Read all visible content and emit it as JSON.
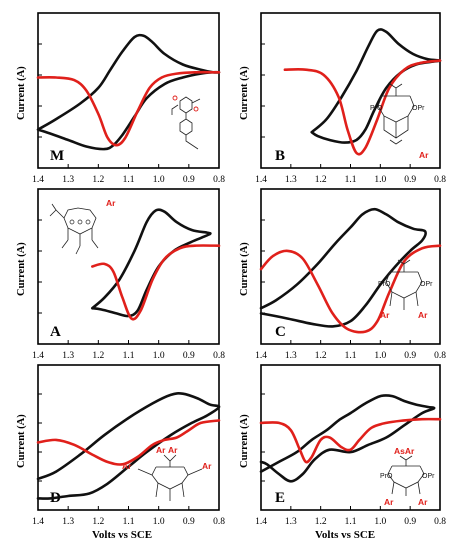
{
  "colors": {
    "scan1": "#111111",
    "scan2": "#e0201b",
    "frame": "#000000"
  },
  "xaxis_label": "Volts vs SCE",
  "chart_data": [
    {
      "type": "line",
      "panel": "M",
      "ylabel": "Current (A)",
      "xlim": [
        1.4,
        0.8
      ],
      "xticks": [
        "1.4",
        "1.3",
        "1.2",
        "1.1",
        "1.0",
        "0.9",
        "0.8"
      ],
      "molecule_labels": [],
      "series": [
        {
          "color": "#111111",
          "points": [
            [
              1.4,
              0.2
            ],
            [
              1.34,
              0.28
            ],
            [
              1.26,
              0.4
            ],
            [
              1.2,
              0.52
            ],
            [
              1.16,
              0.66
            ],
            [
              1.12,
              0.8
            ],
            [
              1.08,
              0.91
            ],
            [
              1.05,
              0.92
            ],
            [
              1.02,
              0.87
            ],
            [
              0.98,
              0.78
            ],
            [
              0.92,
              0.7
            ],
            [
              0.86,
              0.66
            ],
            [
              0.82,
              0.64
            ],
            [
              0.8,
              0.64
            ],
            [
              0.82,
              0.64
            ],
            [
              0.86,
              0.63
            ],
            [
              0.92,
              0.6
            ],
            [
              0.98,
              0.55
            ],
            [
              1.04,
              0.44
            ],
            [
              1.08,
              0.3
            ],
            [
              1.12,
              0.16
            ],
            [
              1.15,
              0.08
            ],
            [
              1.18,
              0.05
            ],
            [
              1.24,
              0.07
            ],
            [
              1.3,
              0.12
            ],
            [
              1.36,
              0.17
            ],
            [
              1.4,
              0.2
            ]
          ]
        },
        {
          "color": "#e0201b",
          "points": [
            [
              1.4,
              0.6
            ],
            [
              1.34,
              0.6
            ],
            [
              1.28,
              0.58
            ],
            [
              1.24,
              0.5
            ],
            [
              1.2,
              0.32
            ],
            [
              1.17,
              0.14
            ],
            [
              1.14,
              0.08
            ],
            [
              1.11,
              0.14
            ],
            [
              1.07,
              0.34
            ],
            [
              1.03,
              0.52
            ],
            [
              0.99,
              0.6
            ],
            [
              0.94,
              0.63
            ],
            [
              0.88,
              0.64
            ],
            [
              0.8,
              0.64
            ]
          ]
        }
      ]
    },
    {
      "type": "line",
      "panel": "B",
      "ylabel": "Current (A)",
      "xlim": [
        1.4,
        0.8
      ],
      "xticks": [
        "1.4",
        "1.3",
        "1.2",
        "1.1",
        "1.0",
        "0.9",
        "0.8"
      ],
      "molecule_labels": [
        "PrO",
        "OPr",
        "Ar"
      ],
      "series": [
        {
          "color": "#111111",
          "points": [
            [
              1.23,
              0.18
            ],
            [
              1.18,
              0.28
            ],
            [
              1.13,
              0.45
            ],
            [
              1.08,
              0.65
            ],
            [
              1.04,
              0.84
            ],
            [
              1.01,
              0.96
            ],
            [
              0.98,
              0.95
            ],
            [
              0.94,
              0.86
            ],
            [
              0.89,
              0.78
            ],
            [
              0.84,
              0.74
            ],
            [
              0.8,
              0.73
            ],
            [
              0.83,
              0.72
            ],
            [
              0.88,
              0.7
            ],
            [
              0.93,
              0.64
            ],
            [
              0.98,
              0.52
            ],
            [
              1.02,
              0.35
            ],
            [
              1.05,
              0.2
            ],
            [
              1.08,
              0.12
            ],
            [
              1.12,
              0.1
            ],
            [
              1.17,
              0.12
            ],
            [
              1.21,
              0.15
            ],
            [
              1.23,
              0.18
            ]
          ]
        },
        {
          "color": "#e0201b",
          "points": [
            [
              1.32,
              0.66
            ],
            [
              1.25,
              0.66
            ],
            [
              1.19,
              0.62
            ],
            [
              1.14,
              0.45
            ],
            [
              1.11,
              0.2
            ],
            [
              1.08,
              0.02
            ],
            [
              1.05,
              0.06
            ],
            [
              1.01,
              0.28
            ],
            [
              0.97,
              0.52
            ],
            [
              0.92,
              0.66
            ],
            [
              0.87,
              0.71
            ],
            [
              0.8,
              0.73
            ]
          ]
        }
      ]
    },
    {
      "type": "line",
      "panel": "A",
      "ylabel": "Current (A)",
      "xlim": [
        1.4,
        0.8
      ],
      "xticks": [
        "1.4",
        "1.3",
        "1.2",
        "1.1",
        "1.0",
        "0.9",
        "0.8"
      ],
      "molecule_labels": [
        "Ar"
      ],
      "series": [
        {
          "color": "#111111",
          "points": [
            [
              1.22,
              0.18
            ],
            [
              1.18,
              0.26
            ],
            [
              1.13,
              0.4
            ],
            [
              1.08,
              0.62
            ],
            [
              1.04,
              0.84
            ],
            [
              1.01,
              0.93
            ],
            [
              0.98,
              0.92
            ],
            [
              0.94,
              0.84
            ],
            [
              0.89,
              0.78
            ],
            [
              0.84,
              0.76
            ],
            [
              0.83,
              0.75
            ],
            [
              0.86,
              0.72
            ],
            [
              0.9,
              0.68
            ],
            [
              0.95,
              0.62
            ],
            [
              1.0,
              0.5
            ],
            [
              1.04,
              0.32
            ],
            [
              1.07,
              0.16
            ],
            [
              1.1,
              0.12
            ],
            [
              1.14,
              0.14
            ],
            [
              1.19,
              0.17
            ],
            [
              1.22,
              0.18
            ]
          ]
        },
        {
          "color": "#e0201b",
          "points": [
            [
              1.22,
              0.5
            ],
            [
              1.18,
              0.52
            ],
            [
              1.15,
              0.46
            ],
            [
              1.12,
              0.26
            ],
            [
              1.09,
              0.1
            ],
            [
              1.06,
              0.16
            ],
            [
              1.02,
              0.4
            ],
            [
              0.98,
              0.56
            ],
            [
              0.93,
              0.64
            ],
            [
              0.88,
              0.66
            ],
            [
              0.8,
              0.66
            ]
          ]
        }
      ]
    },
    {
      "type": "line",
      "panel": "C",
      "ylabel": "Current (A)",
      "xlim": [
        1.4,
        0.8
      ],
      "xticks": [
        "1.4",
        "1.3",
        "1.2",
        "1.1",
        "1.0",
        "0.9",
        "0.8"
      ],
      "molecule_labels": [
        "PrO",
        "OPr",
        "Ar",
        "Ar"
      ],
      "series": [
        {
          "color": "#111111",
          "points": [
            [
              1.4,
              0.18
            ],
            [
              1.35,
              0.24
            ],
            [
              1.28,
              0.36
            ],
            [
              1.21,
              0.52
            ],
            [
              1.15,
              0.68
            ],
            [
              1.1,
              0.8
            ],
            [
              1.06,
              0.9
            ],
            [
              1.02,
              0.94
            ],
            [
              0.98,
              0.9
            ],
            [
              0.94,
              0.84
            ],
            [
              0.89,
              0.79
            ],
            [
              0.85,
              0.77
            ],
            [
              0.86,
              0.7
            ],
            [
              0.9,
              0.62
            ],
            [
              0.95,
              0.5
            ],
            [
              1.0,
              0.36
            ],
            [
              1.05,
              0.2
            ],
            [
              1.1,
              0.08
            ],
            [
              1.16,
              0.04
            ],
            [
              1.23,
              0.06
            ],
            [
              1.31,
              0.1
            ],
            [
              1.4,
              0.14
            ]
          ]
        },
        {
          "color": "#e0201b",
          "points": [
            [
              1.4,
              0.48
            ],
            [
              1.36,
              0.58
            ],
            [
              1.31,
              0.62
            ],
            [
              1.26,
              0.56
            ],
            [
              1.21,
              0.36
            ],
            [
              1.16,
              0.14
            ],
            [
              1.11,
              0.02
            ],
            [
              1.05,
              0.0
            ],
            [
              1.01,
              0.08
            ],
            [
              0.97,
              0.3
            ],
            [
              0.92,
              0.54
            ],
            [
              0.86,
              0.64
            ],
            [
              0.8,
              0.66
            ]
          ]
        }
      ]
    },
    {
      "type": "line",
      "panel": "D",
      "ylabel": "Current (A)",
      "xlim": [
        1.4,
        0.8
      ],
      "xticks": [
        "1.4",
        "1.3",
        "1.2",
        "1.1",
        "1.0",
        "0.9",
        "0.8"
      ],
      "molecule_labels": [
        "Ar",
        "Ar",
        "Ar",
        "Ar"
      ],
      "series": [
        {
          "color": "#111111",
          "points": [
            [
              1.4,
              0.16
            ],
            [
              1.34,
              0.22
            ],
            [
              1.26,
              0.36
            ],
            [
              1.18,
              0.52
            ],
            [
              1.1,
              0.66
            ],
            [
              1.02,
              0.78
            ],
            [
              0.96,
              0.85
            ],
            [
              0.92,
              0.86
            ],
            [
              0.87,
              0.82
            ],
            [
              0.83,
              0.77
            ],
            [
              0.8,
              0.75
            ],
            [
              0.84,
              0.68
            ],
            [
              0.89,
              0.62
            ],
            [
              0.96,
              0.52
            ],
            [
              1.04,
              0.38
            ],
            [
              1.1,
              0.26
            ],
            [
              1.17,
              0.12
            ],
            [
              1.23,
              0.04
            ],
            [
              1.3,
              0.02
            ],
            [
              1.36,
              0.0
            ],
            [
              1.4,
              0.0
            ]
          ]
        },
        {
          "color": "#e0201b",
          "points": [
            [
              1.4,
              0.46
            ],
            [
              1.34,
              0.48
            ],
            [
              1.28,
              0.44
            ],
            [
              1.22,
              0.36
            ],
            [
              1.17,
              0.3
            ],
            [
              1.12,
              0.28
            ],
            [
              1.07,
              0.34
            ],
            [
              1.02,
              0.44
            ],
            [
              0.98,
              0.48
            ],
            [
              0.94,
              0.5
            ],
            [
              0.9,
              0.56
            ],
            [
              0.86,
              0.62
            ],
            [
              0.8,
              0.64
            ]
          ]
        }
      ]
    },
    {
      "type": "line",
      "panel": "E",
      "ylabel": "Current (A)",
      "xlim": [
        1.4,
        0.8
      ],
      "xticks": [
        "1.4",
        "1.3",
        "1.2",
        "1.1",
        "1.0",
        "0.9",
        "0.8"
      ],
      "molecule_labels": [
        "AsAr",
        "PrO",
        "OPr",
        "Ar",
        "Ar"
      ],
      "series": [
        {
          "color": "#111111",
          "points": [
            [
              1.4,
              0.22
            ],
            [
              1.34,
              0.3
            ],
            [
              1.28,
              0.38
            ],
            [
              1.23,
              0.48
            ],
            [
              1.18,
              0.56
            ],
            [
              1.14,
              0.64
            ],
            [
              1.1,
              0.7
            ],
            [
              1.05,
              0.78
            ],
            [
              1.0,
              0.84
            ],
            [
              0.96,
              0.84
            ],
            [
              0.92,
              0.8
            ],
            [
              0.88,
              0.77
            ],
            [
              0.84,
              0.75
            ],
            [
              0.82,
              0.74
            ],
            [
              0.86,
              0.7
            ],
            [
              0.92,
              0.6
            ],
            [
              0.98,
              0.5
            ],
            [
              1.04,
              0.44
            ],
            [
              1.1,
              0.38
            ],
            [
              1.17,
              0.4
            ],
            [
              1.22,
              0.32
            ],
            [
              1.26,
              0.2
            ],
            [
              1.3,
              0.14
            ],
            [
              1.34,
              0.2
            ],
            [
              1.38,
              0.28
            ],
            [
              1.4,
              0.3
            ]
          ]
        },
        {
          "color": "#e0201b",
          "points": [
            [
              1.4,
              0.62
            ],
            [
              1.34,
              0.62
            ],
            [
              1.3,
              0.56
            ],
            [
              1.27,
              0.4
            ],
            [
              1.25,
              0.3
            ],
            [
              1.23,
              0.34
            ],
            [
              1.2,
              0.48
            ],
            [
              1.17,
              0.5
            ],
            [
              1.13,
              0.42
            ],
            [
              1.1,
              0.4
            ],
            [
              1.07,
              0.48
            ],
            [
              1.03,
              0.58
            ],
            [
              0.98,
              0.62
            ],
            [
              0.92,
              0.64
            ],
            [
              0.86,
              0.65
            ],
            [
              0.8,
              0.65
            ]
          ]
        }
      ]
    }
  ]
}
